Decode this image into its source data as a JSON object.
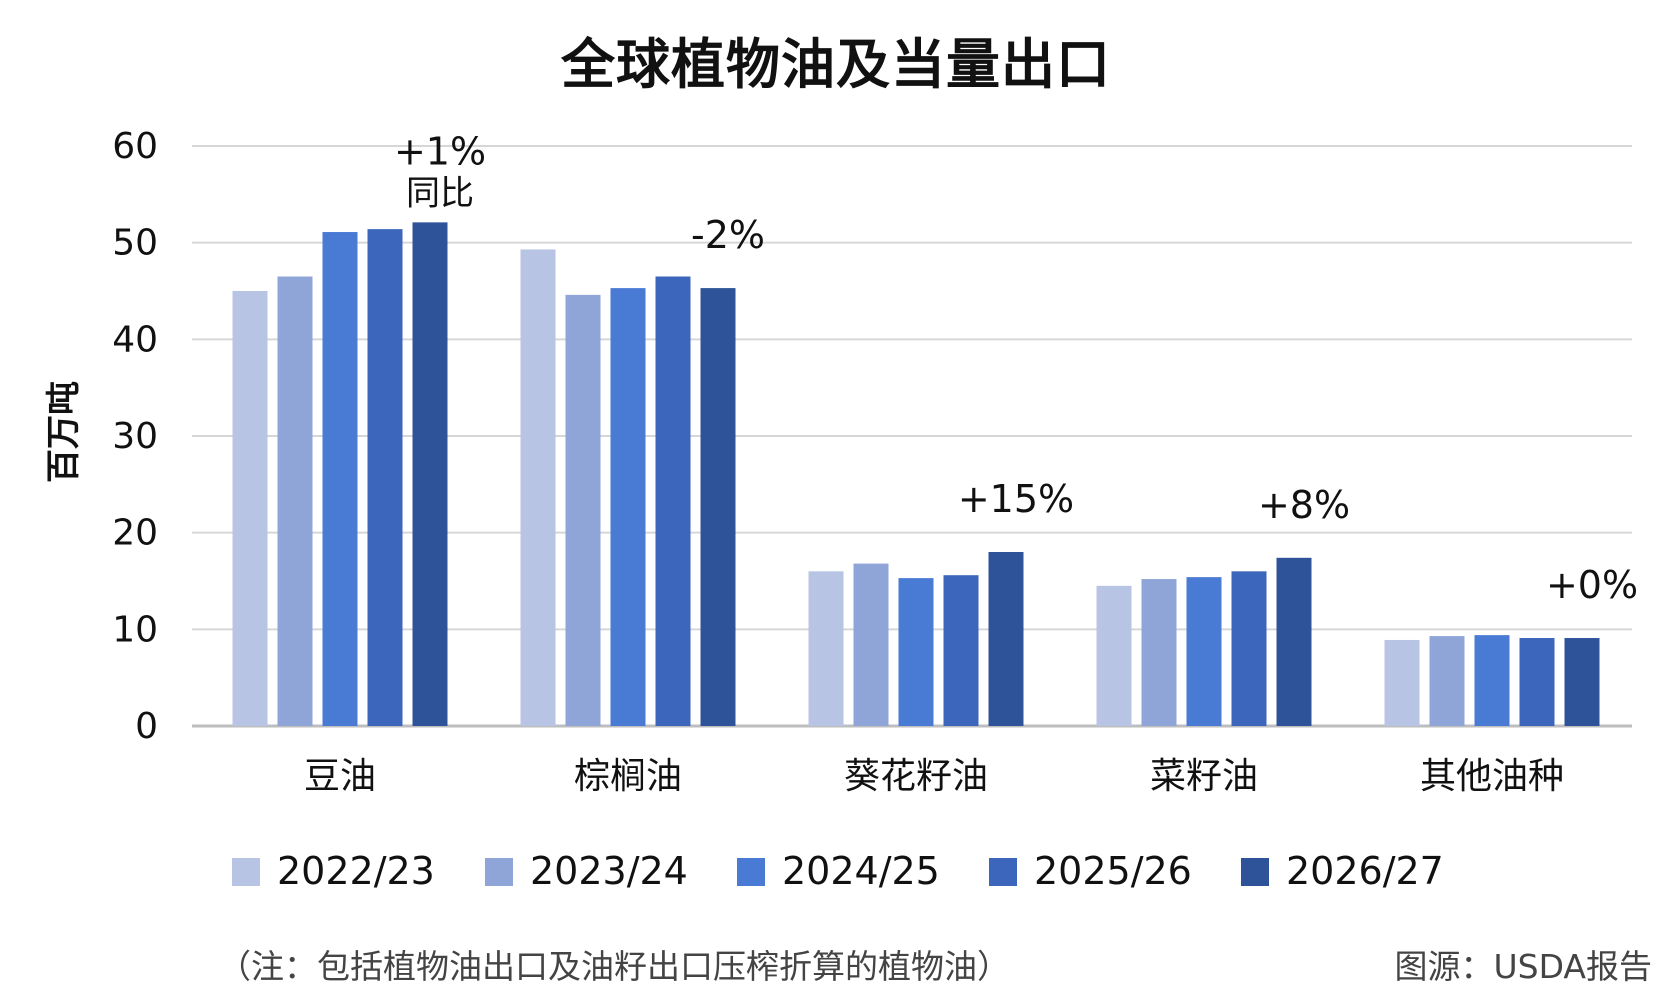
{
  "chart_data": {
    "type": "bar",
    "title": "全球植物油及当量出口",
    "ylabel": "百万吨",
    "ylim": [
      0,
      60
    ],
    "yticks": [
      0,
      10,
      20,
      30,
      40,
      50,
      60
    ],
    "grid": true,
    "legend_position": "bottom",
    "categories": [
      "豆油",
      "棕榈油",
      "葵花籽油",
      "菜籽油",
      "其他油种"
    ],
    "series": [
      {
        "name": "2022/23",
        "color": "#b8c4e4",
        "values": [
          45.0,
          49.3,
          16.0,
          14.5,
          8.9
        ]
      },
      {
        "name": "2023/24",
        "color": "#8fa5d8",
        "values": [
          46.5,
          44.6,
          16.8,
          15.2,
          9.3
        ]
      },
      {
        "name": "2024/25",
        "color": "#4a7bd4",
        "values": [
          51.1,
          45.3,
          15.3,
          15.4,
          9.4
        ]
      },
      {
        "name": "2025/26",
        "color": "#3b66bc",
        "values": [
          51.4,
          46.5,
          15.6,
          16.0,
          9.1
        ]
      },
      {
        "name": "2026/27",
        "color": "#2f5399",
        "values": [
          52.1,
          45.3,
          18.0,
          17.4,
          9.1
        ]
      }
    ],
    "annotations": [
      {
        "category": "豆油",
        "text": "+1%",
        "subtext": "同比"
      },
      {
        "category": "棕榈油",
        "text": "-2%",
        "subtext": ""
      },
      {
        "category": "葵花籽油",
        "text": "+15%",
        "subtext": ""
      },
      {
        "category": "菜籽油",
        "text": "+8%",
        "subtext": ""
      },
      {
        "category": "其他油种",
        "text": "+0%",
        "subtext": ""
      }
    ]
  },
  "footer": {
    "note": "（注：包括植物油出口及油籽出口压榨折算的植物油）",
    "source": "图源：USDA报告"
  }
}
